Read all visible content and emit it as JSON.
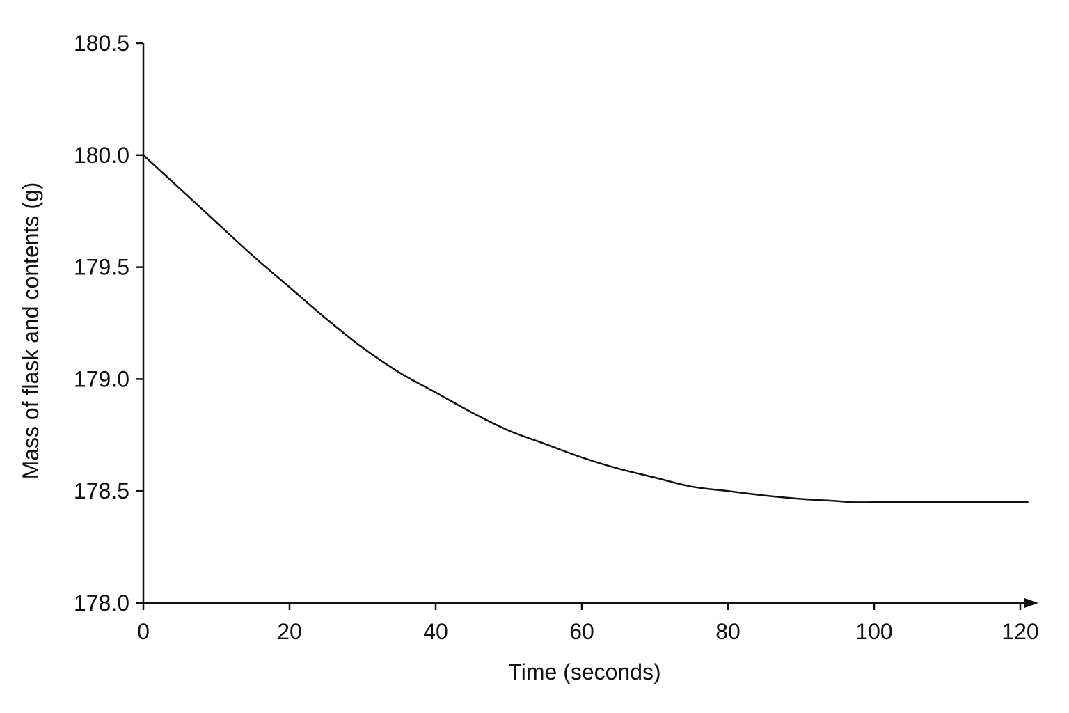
{
  "chart_data": {
    "type": "line",
    "title": "",
    "xlabel": "Time (seconds)",
    "ylabel": "Mass of flask and contents (g)",
    "xlim": [
      0,
      120
    ],
    "ylim": [
      178.0,
      180.5
    ],
    "x_ticks": [
      "0",
      "20",
      "40",
      "60",
      "80",
      "100",
      "120"
    ],
    "y_ticks": [
      "178.0",
      "178.5",
      "179.0",
      "179.5",
      "180.0",
      "180.5"
    ],
    "grid": false,
    "legend": "none",
    "line_color": "#111111",
    "series": [
      {
        "x": [
          0,
          5,
          10,
          15,
          20,
          25,
          30,
          35,
          40,
          45,
          50,
          55,
          60,
          65,
          70,
          75,
          80,
          85,
          90,
          95,
          97,
          100,
          105,
          110,
          115,
          121
        ],
        "values": [
          180.0,
          179.85,
          179.7,
          179.55,
          179.41,
          179.27,
          179.14,
          179.03,
          178.94,
          178.85,
          178.77,
          178.71,
          178.65,
          178.6,
          178.56,
          178.52,
          178.5,
          178.48,
          178.465,
          178.455,
          178.45,
          178.45,
          178.45,
          178.45,
          178.45,
          178.45
        ]
      }
    ]
  }
}
